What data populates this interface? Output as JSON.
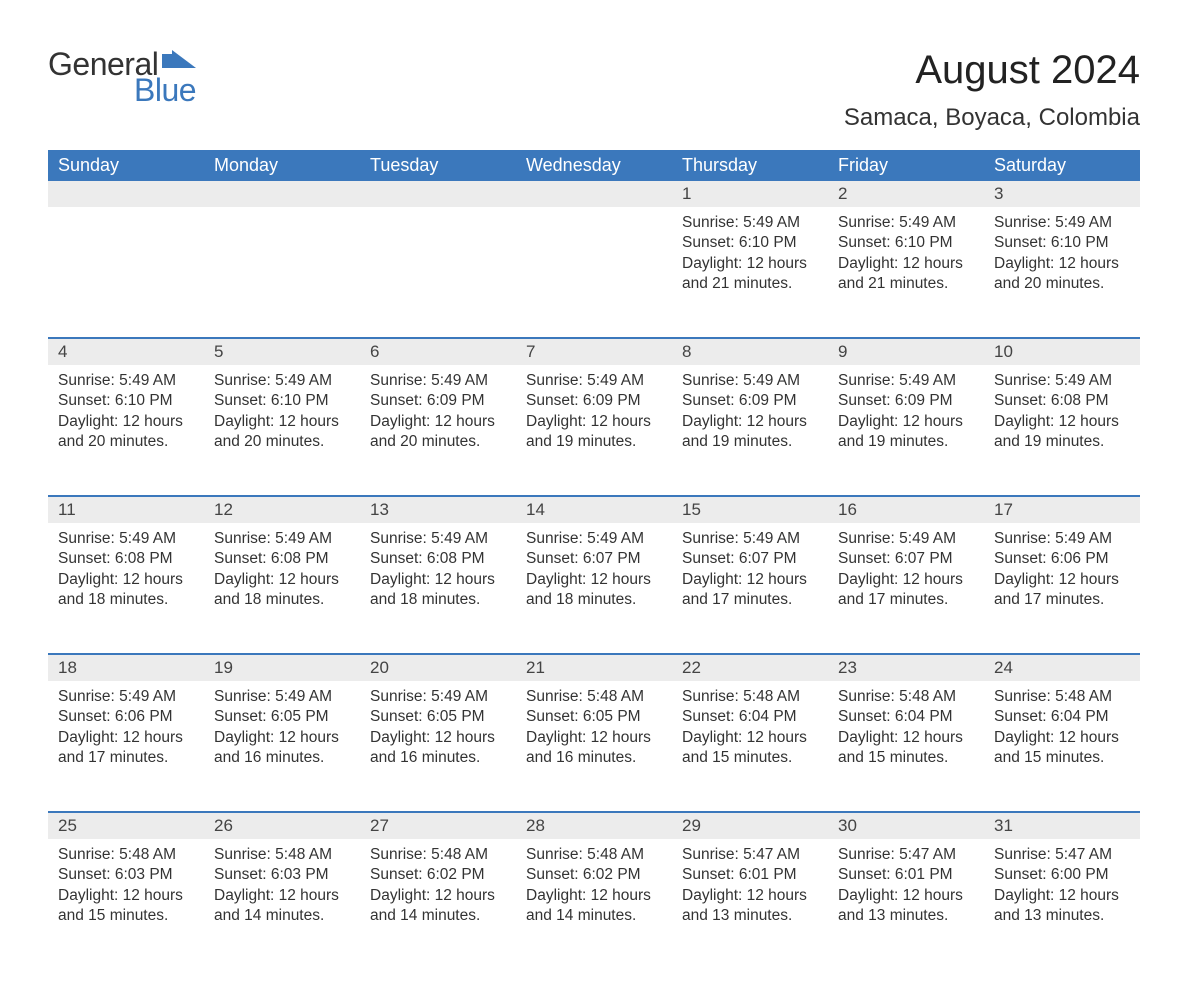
{
  "brand": {
    "word1": "General",
    "word2": "Blue",
    "accent_color": "#3b78bc",
    "text_color": "#333333"
  },
  "title": {
    "month": "August 2024",
    "location": "Samaca, Boyaca, Colombia"
  },
  "colors": {
    "header_bg": "#3b78bc",
    "header_text": "#ffffff",
    "daynum_bg": "#ececec",
    "daynum_border": "#3b78bc",
    "body_text": "#333333",
    "page_bg": "#ffffff"
  },
  "typography": {
    "month_fontsize": 40,
    "location_fontsize": 24,
    "header_fontsize": 18,
    "daynum_fontsize": 17,
    "body_fontsize": 15.5,
    "font_family": "Arial"
  },
  "weekdays": [
    "Sunday",
    "Monday",
    "Tuesday",
    "Wednesday",
    "Thursday",
    "Friday",
    "Saturday"
  ],
  "layout": {
    "columns": 7,
    "rows": 5,
    "empty_leading_cells": 4
  },
  "days": [
    {
      "n": "1",
      "sunrise": "5:49 AM",
      "sunset": "6:10 PM",
      "daylight": "12 hours and 21 minutes."
    },
    {
      "n": "2",
      "sunrise": "5:49 AM",
      "sunset": "6:10 PM",
      "daylight": "12 hours and 21 minutes."
    },
    {
      "n": "3",
      "sunrise": "5:49 AM",
      "sunset": "6:10 PM",
      "daylight": "12 hours and 20 minutes."
    },
    {
      "n": "4",
      "sunrise": "5:49 AM",
      "sunset": "6:10 PM",
      "daylight": "12 hours and 20 minutes."
    },
    {
      "n": "5",
      "sunrise": "5:49 AM",
      "sunset": "6:10 PM",
      "daylight": "12 hours and 20 minutes."
    },
    {
      "n": "6",
      "sunrise": "5:49 AM",
      "sunset": "6:09 PM",
      "daylight": "12 hours and 20 minutes."
    },
    {
      "n": "7",
      "sunrise": "5:49 AM",
      "sunset": "6:09 PM",
      "daylight": "12 hours and 19 minutes."
    },
    {
      "n": "8",
      "sunrise": "5:49 AM",
      "sunset": "6:09 PM",
      "daylight": "12 hours and 19 minutes."
    },
    {
      "n": "9",
      "sunrise": "5:49 AM",
      "sunset": "6:09 PM",
      "daylight": "12 hours and 19 minutes."
    },
    {
      "n": "10",
      "sunrise": "5:49 AM",
      "sunset": "6:08 PM",
      "daylight": "12 hours and 19 minutes."
    },
    {
      "n": "11",
      "sunrise": "5:49 AM",
      "sunset": "6:08 PM",
      "daylight": "12 hours and 18 minutes."
    },
    {
      "n": "12",
      "sunrise": "5:49 AM",
      "sunset": "6:08 PM",
      "daylight": "12 hours and 18 minutes."
    },
    {
      "n": "13",
      "sunrise": "5:49 AM",
      "sunset": "6:08 PM",
      "daylight": "12 hours and 18 minutes."
    },
    {
      "n": "14",
      "sunrise": "5:49 AM",
      "sunset": "6:07 PM",
      "daylight": "12 hours and 18 minutes."
    },
    {
      "n": "15",
      "sunrise": "5:49 AM",
      "sunset": "6:07 PM",
      "daylight": "12 hours and 17 minutes."
    },
    {
      "n": "16",
      "sunrise": "5:49 AM",
      "sunset": "6:07 PM",
      "daylight": "12 hours and 17 minutes."
    },
    {
      "n": "17",
      "sunrise": "5:49 AM",
      "sunset": "6:06 PM",
      "daylight": "12 hours and 17 minutes."
    },
    {
      "n": "18",
      "sunrise": "5:49 AM",
      "sunset": "6:06 PM",
      "daylight": "12 hours and 17 minutes."
    },
    {
      "n": "19",
      "sunrise": "5:49 AM",
      "sunset": "6:05 PM",
      "daylight": "12 hours and 16 minutes."
    },
    {
      "n": "20",
      "sunrise": "5:49 AM",
      "sunset": "6:05 PM",
      "daylight": "12 hours and 16 minutes."
    },
    {
      "n": "21",
      "sunrise": "5:48 AM",
      "sunset": "6:05 PM",
      "daylight": "12 hours and 16 minutes."
    },
    {
      "n": "22",
      "sunrise": "5:48 AM",
      "sunset": "6:04 PM",
      "daylight": "12 hours and 15 minutes."
    },
    {
      "n": "23",
      "sunrise": "5:48 AM",
      "sunset": "6:04 PM",
      "daylight": "12 hours and 15 minutes."
    },
    {
      "n": "24",
      "sunrise": "5:48 AM",
      "sunset": "6:04 PM",
      "daylight": "12 hours and 15 minutes."
    },
    {
      "n": "25",
      "sunrise": "5:48 AM",
      "sunset": "6:03 PM",
      "daylight": "12 hours and 15 minutes."
    },
    {
      "n": "26",
      "sunrise": "5:48 AM",
      "sunset": "6:03 PM",
      "daylight": "12 hours and 14 minutes."
    },
    {
      "n": "27",
      "sunrise": "5:48 AM",
      "sunset": "6:02 PM",
      "daylight": "12 hours and 14 minutes."
    },
    {
      "n": "28",
      "sunrise": "5:48 AM",
      "sunset": "6:02 PM",
      "daylight": "12 hours and 14 minutes."
    },
    {
      "n": "29",
      "sunrise": "5:47 AM",
      "sunset": "6:01 PM",
      "daylight": "12 hours and 13 minutes."
    },
    {
      "n": "30",
      "sunrise": "5:47 AM",
      "sunset": "6:01 PM",
      "daylight": "12 hours and 13 minutes."
    },
    {
      "n": "31",
      "sunrise": "5:47 AM",
      "sunset": "6:00 PM",
      "daylight": "12 hours and 13 minutes."
    }
  ],
  "labels": {
    "sunrise": "Sunrise:",
    "sunset": "Sunset:",
    "daylight": "Daylight:"
  }
}
